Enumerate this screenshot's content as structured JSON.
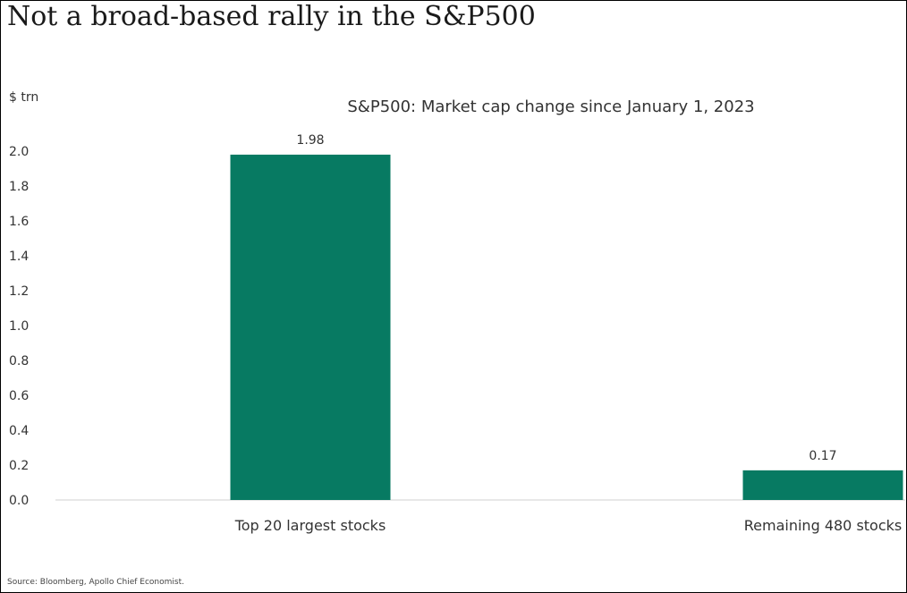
{
  "headline": "Not a broad-based rally in the S&P500",
  "source": "Source: Bloomberg, Apollo Chief Economist.",
  "colors": {
    "bar": "#077a62",
    "axis": "#d0d0d0",
    "border": "#000000"
  },
  "chart_data": {
    "type": "bar",
    "title": "S&P500: Market cap change since January 1, 2023",
    "unit_label": "$ trn",
    "xlabel": "",
    "ylabel": "",
    "categories": [
      "Top 20 largest stocks",
      "Remaining 480 stocks"
    ],
    "values": [
      1.98,
      0.17
    ],
    "data_labels": [
      "1.98",
      "0.17"
    ],
    "ylim": [
      0,
      2.0
    ],
    "yticks": [
      "0.0",
      "0.2",
      "0.4",
      "0.6",
      "0.8",
      "1.0",
      "1.2",
      "1.4",
      "1.6",
      "1.8",
      "2.0"
    ],
    "grid": false,
    "legend": "none"
  }
}
